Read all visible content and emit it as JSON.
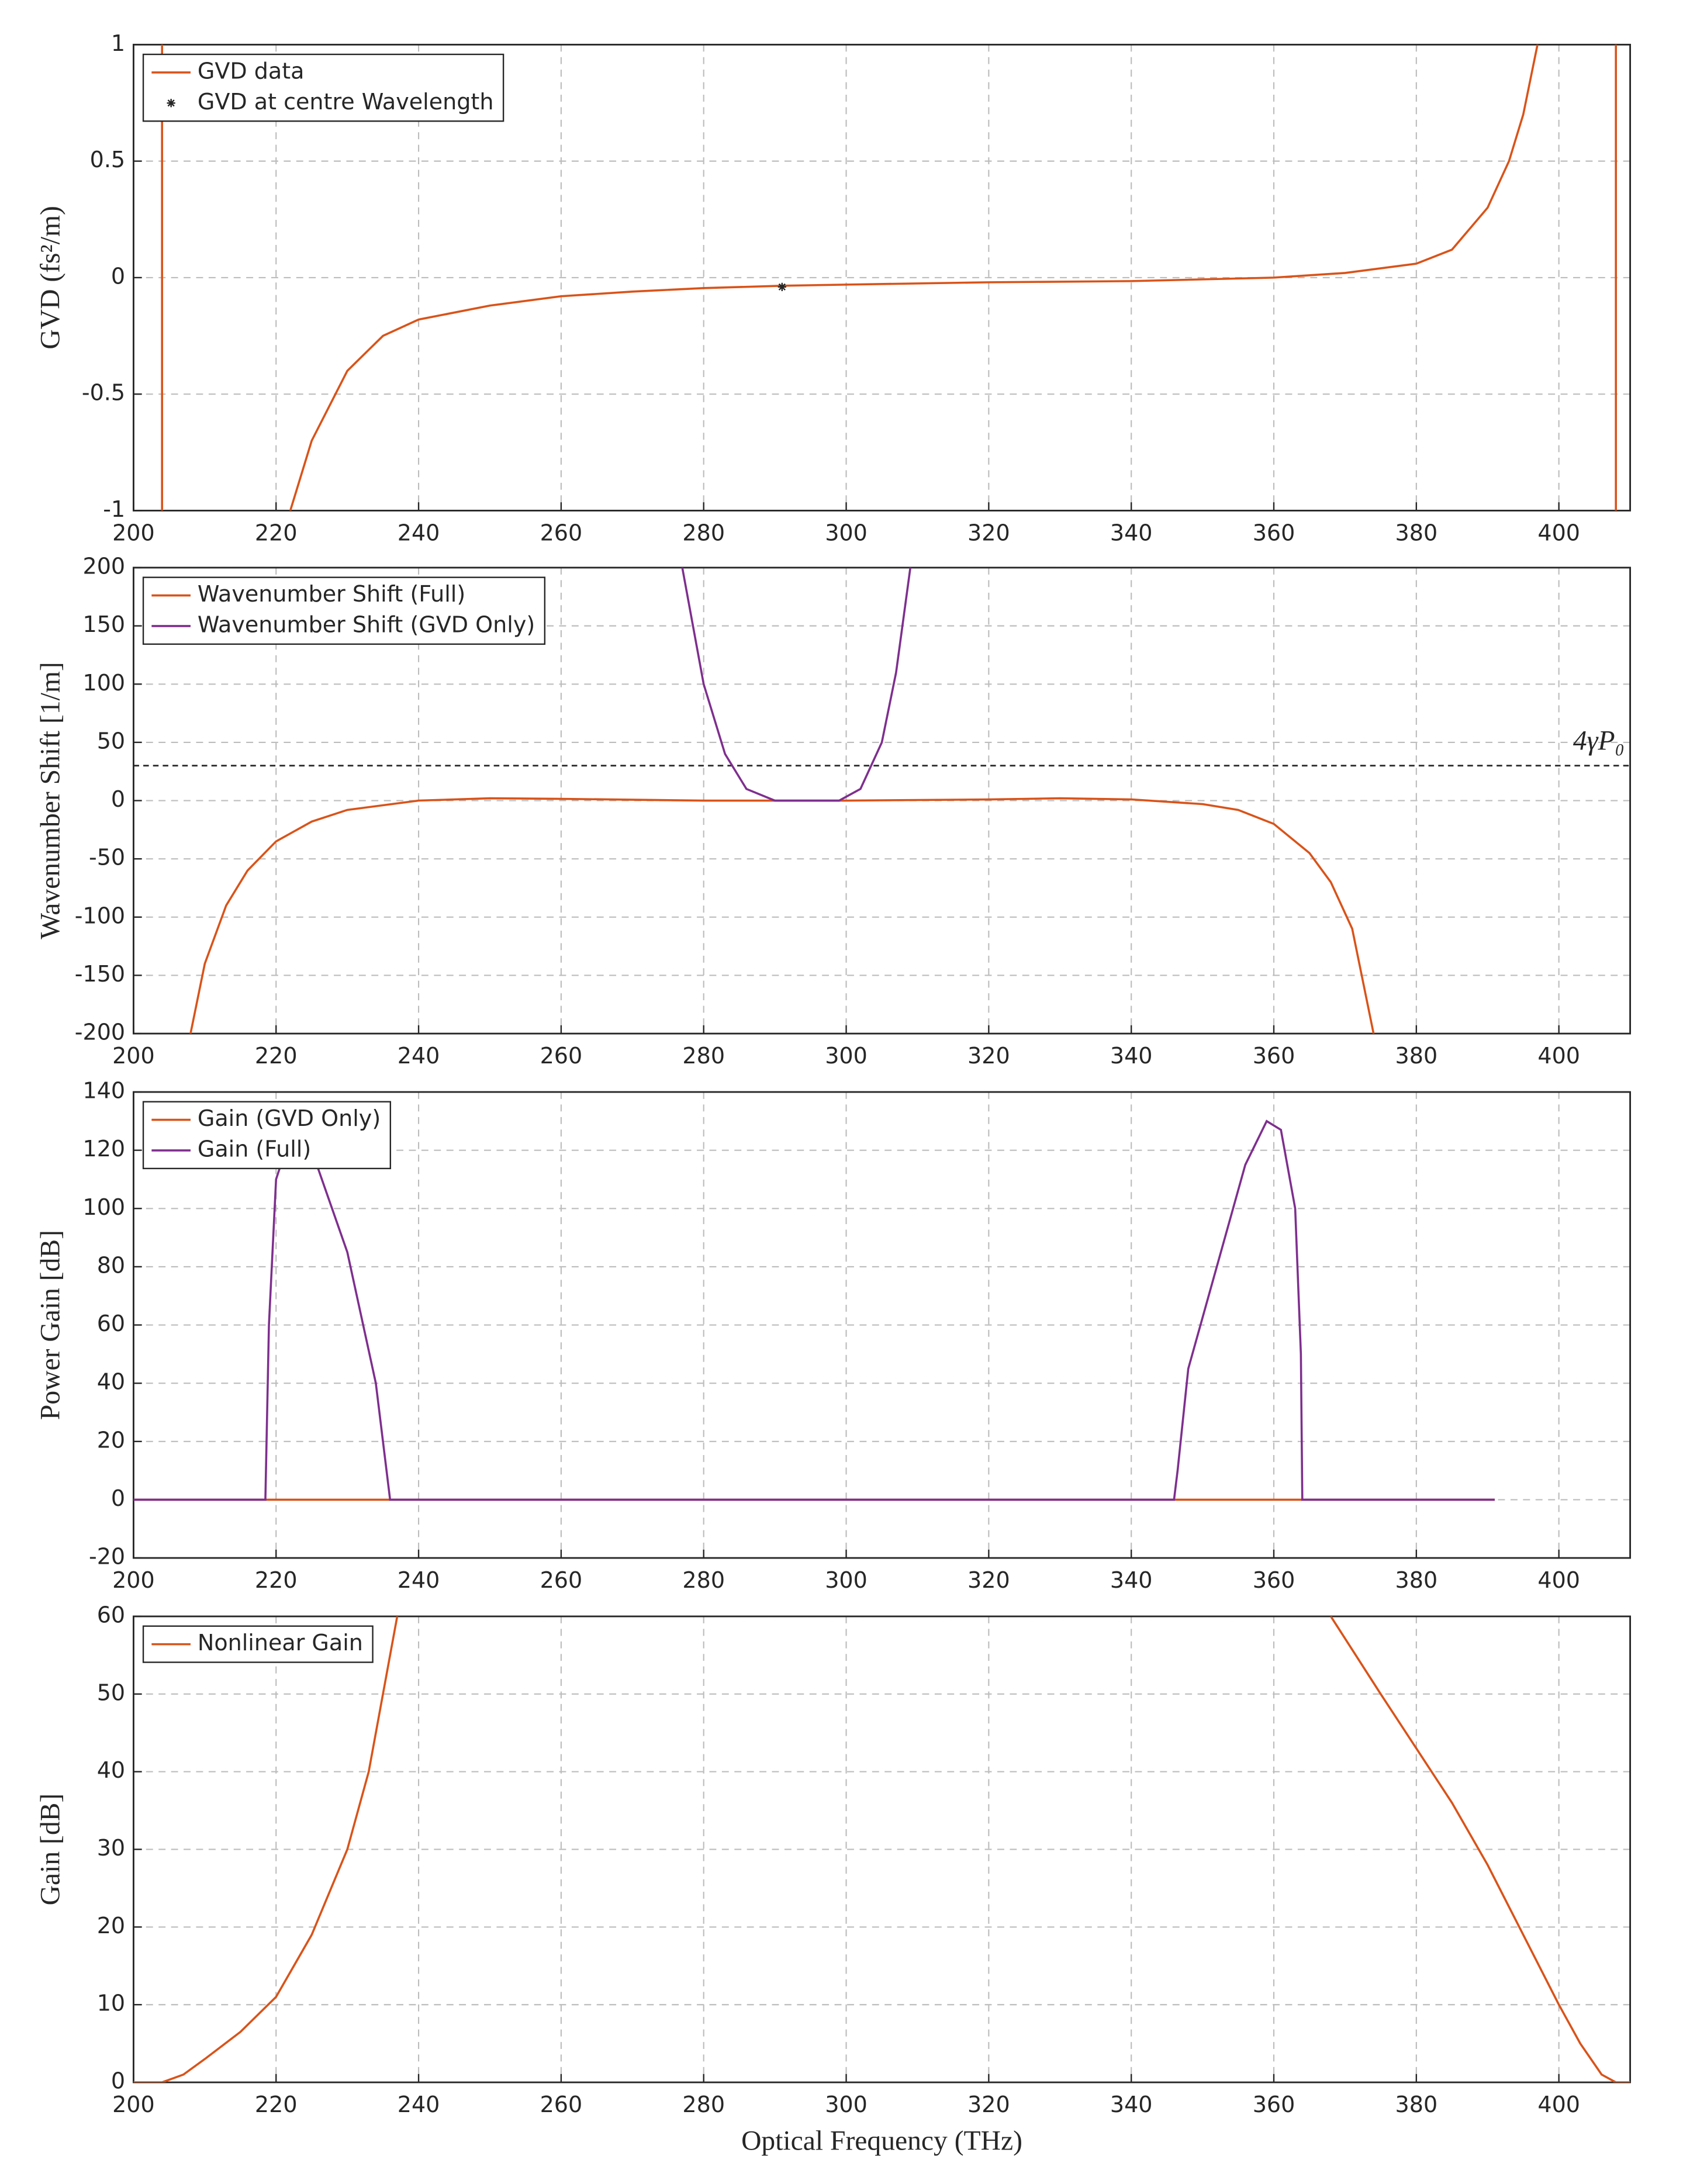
{
  "chart_data": [
    {
      "type": "line",
      "ylabel": "GVD (fs²/m)",
      "xlim": [
        200,
        410
      ],
      "ylim": [
        -1,
        1
      ],
      "xticks": [
        200,
        220,
        240,
        260,
        280,
        300,
        320,
        340,
        360,
        380,
        400
      ],
      "yticks": [
        -1,
        -0.5,
        0,
        0.5,
        1
      ],
      "grid": true,
      "legend": "upper left",
      "series": [
        {
          "name": "GVD data",
          "color": "#d95319",
          "x": [
            204,
            204,
            213,
            222,
            225,
            230,
            235,
            240,
            250,
            260,
            270,
            280,
            291,
            300,
            320,
            340,
            360,
            370,
            380,
            385,
            390,
            393,
            395,
            397,
            402,
            408,
            408
          ],
          "values": [
            1,
            -1,
            null,
            -1,
            -0.7,
            -0.4,
            -0.25,
            -0.18,
            -0.12,
            -0.08,
            -0.06,
            -0.045,
            -0.035,
            -0.03,
            -0.02,
            -0.015,
            0,
            0.02,
            0.06,
            0.12,
            0.3,
            0.5,
            0.7,
            1,
            null,
            1,
            -1
          ]
        },
        {
          "name": "GVD at centre Wavelength",
          "color": "#262626",
          "marker": "*",
          "x": [
            291
          ],
          "values": [
            -0.04
          ]
        }
      ]
    },
    {
      "type": "line",
      "ylabel": "Wavenumber Shift [1/m]",
      "xlim": [
        200,
        410
      ],
      "ylim": [
        -200,
        200
      ],
      "xticks": [
        200,
        220,
        240,
        260,
        280,
        300,
        320,
        340,
        360,
        380,
        400
      ],
      "yticks": [
        -200,
        -150,
        -100,
        -50,
        0,
        50,
        100,
        150,
        200
      ],
      "grid": true,
      "legend": "upper left",
      "annotation": {
        "text": "4γP₀",
        "value": 30
      },
      "series": [
        {
          "name": "Wavenumber Shift (Full)",
          "color": "#d95319",
          "x": [
            208,
            210,
            213,
            216,
            220,
            225,
            230,
            240,
            250,
            260,
            280,
            290,
            300,
            320,
            330,
            340,
            350,
            355,
            360,
            365,
            368,
            371,
            374
          ],
          "values": [
            -200,
            -140,
            -90,
            -60,
            -35,
            -18,
            -8,
            0,
            2,
            1.5,
            0,
            0,
            0,
            1,
            2,
            1,
            -3,
            -8,
            -20,
            -45,
            -70,
            -110,
            -200
          ]
        },
        {
          "name": "Wavenumber Shift (GVD Only)",
          "color": "#7e2f8e",
          "x": [
            277,
            280,
            283,
            286,
            290,
            295,
            299,
            302,
            305,
            307,
            309
          ],
          "values": [
            200,
            100,
            40,
            10,
            0,
            0,
            0,
            10,
            50,
            110,
            200
          ]
        }
      ]
    },
    {
      "type": "line",
      "ylabel": "Power Gain [dB]",
      "xlim": [
        200,
        410
      ],
      "ylim": [
        -20,
        140
      ],
      "xticks": [
        200,
        220,
        240,
        260,
        280,
        300,
        320,
        340,
        360,
        380,
        400
      ],
      "yticks": [
        -20,
        0,
        20,
        40,
        60,
        80,
        100,
        120,
        140
      ],
      "grid": true,
      "legend": "upper left",
      "series": [
        {
          "name": "Gain (GVD Only)",
          "color": "#d95319",
          "x": [
            200,
            391
          ],
          "values": [
            0,
            0
          ]
        },
        {
          "name": "Gain (Full)",
          "color": "#7e2f8e",
          "x": [
            200,
            218.5,
            219,
            220,
            222,
            225,
            230,
            234,
            235.5,
            236,
            346,
            346.5,
            348,
            352,
            356,
            359,
            361,
            363,
            363.8,
            364,
            391
          ],
          "values": [
            0,
            0,
            60,
            110,
            125,
            120,
            85,
            40,
            10,
            0,
            0,
            10,
            45,
            80,
            115,
            130,
            127,
            100,
            50,
            0,
            0
          ]
        }
      ]
    },
    {
      "type": "line",
      "ylabel": "Gain [dB]",
      "xlabel": "Optical Frequency (THz)",
      "xlim": [
        200,
        410
      ],
      "ylim": [
        0,
        60
      ],
      "xticks": [
        200,
        220,
        240,
        260,
        280,
        300,
        320,
        340,
        360,
        380,
        400
      ],
      "yticks": [
        0,
        10,
        20,
        30,
        40,
        50,
        60
      ],
      "grid": true,
      "legend": "upper left",
      "series": [
        {
          "name": "Nonlinear Gain",
          "color": "#d95319",
          "x": [
            200,
            204,
            207,
            210,
            215,
            220,
            225,
            230,
            233,
            235,
            237,
            300,
            368,
            375,
            380,
            385,
            390,
            395,
            400,
            403,
            406,
            408,
            410
          ],
          "values": [
            0,
            0,
            1,
            3,
            6.5,
            11,
            19,
            30,
            40,
            50,
            60,
            null,
            60,
            50,
            43,
            36,
            28,
            19,
            10,
            5,
            1,
            0,
            0
          ]
        }
      ]
    }
  ]
}
